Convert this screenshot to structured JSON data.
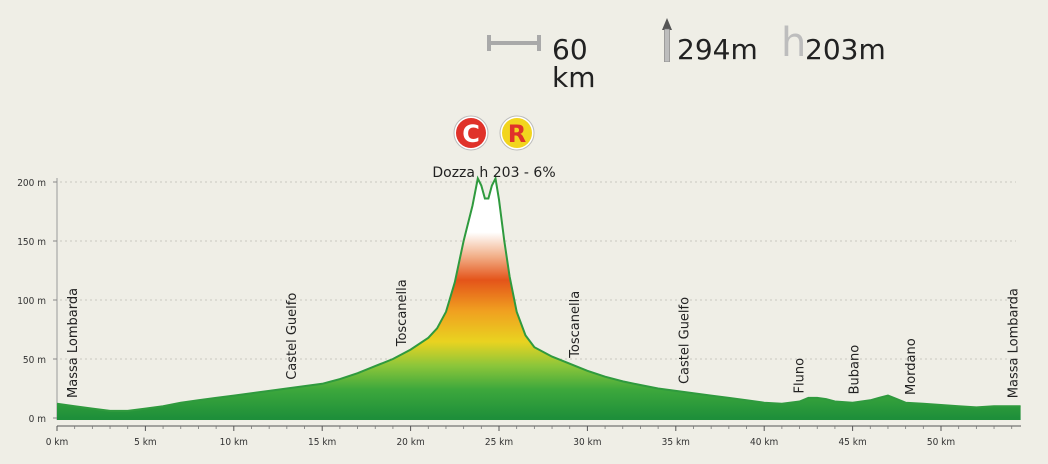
{
  "stats": {
    "distance": "60 km",
    "climb": "294m",
    "max_altitude": "203m"
  },
  "colors": {
    "background": "#efeee6",
    "profile_line": "#2f9a3e",
    "low": "#1e8f3a",
    "mid": "#e9d320",
    "high": "#e4541a",
    "peak": "#ffffff"
  },
  "climb_badges": [
    {
      "letter": "C",
      "color": "#e0322a",
      "text_color": "#ffffff"
    },
    {
      "letter": "R",
      "color": "#f2d51e",
      "text_color": "#e0322a"
    }
  ],
  "climb_label": "Dozza h 203 - 6%",
  "chart_data": {
    "type": "area",
    "xlim": [
      0,
      54.5
    ],
    "ylim": [
      0,
      200
    ],
    "y_ticks": [
      0,
      50,
      100,
      150,
      200
    ],
    "y_tick_labels": [
      "0 m",
      "50 m",
      "100 m",
      "150 m",
      "200 m"
    ],
    "x_ticks": [
      0,
      5,
      10,
      15,
      20,
      25,
      30,
      35,
      40,
      45,
      50
    ],
    "x_tick_labels": [
      "0 km",
      "5 km",
      "10 km",
      "15 km",
      "20 km",
      "25 km",
      "30 km",
      "35 km",
      "40 km",
      "45 km",
      "50 km"
    ],
    "grid": "horizontal-dotted",
    "profile": {
      "x": [
        0,
        1,
        2,
        3,
        4,
        5,
        6,
        7,
        8,
        9,
        10,
        11,
        12,
        13,
        14,
        15,
        16,
        17,
        18,
        19,
        20,
        21,
        21.5,
        22,
        22.5,
        23,
        23.5,
        23.8,
        24,
        24.2,
        24.4,
        24.6,
        24.8,
        25,
        25.3,
        25.6,
        26,
        26.5,
        27,
        28,
        29,
        30,
        31,
        32,
        33,
        34,
        35,
        36,
        37,
        38,
        39,
        40,
        41,
        42,
        42.5,
        43,
        43.5,
        44,
        45,
        46,
        46.5,
        47,
        47.5,
        48,
        49,
        50,
        51,
        52,
        53,
        54,
        54.5
      ],
      "y": [
        12,
        10,
        8,
        6,
        6,
        8,
        10,
        13,
        15,
        17,
        19,
        21,
        23,
        25,
        27,
        29,
        33,
        38,
        44,
        50,
        58,
        68,
        76,
        90,
        115,
        150,
        180,
        203,
        197,
        186,
        186,
        197,
        203,
        185,
        150,
        120,
        90,
        70,
        60,
        52,
        46,
        40,
        35,
        31,
        28,
        25,
        23,
        21,
        19,
        17,
        15,
        13,
        12,
        14,
        17,
        17,
        16,
        14,
        13,
        15,
        17,
        19,
        16,
        13,
        12,
        11,
        10,
        9,
        10,
        10,
        10
      ]
    },
    "places": [
      {
        "km": 0.9,
        "label": "Massa Lombarda"
      },
      {
        "km": 13.3,
        "label": "Castel Guelfo"
      },
      {
        "km": 19.5,
        "label": "Toscanella"
      },
      {
        "km": 29.3,
        "label": "Toscanella"
      },
      {
        "km": 35.5,
        "label": "Castel Guelfo"
      },
      {
        "km": 42.0,
        "label": "Fluno"
      },
      {
        "km": 45.1,
        "label": "Bubano"
      },
      {
        "km": 48.3,
        "label": "Mordano"
      },
      {
        "km": 54.1,
        "label": "Massa Lombarda"
      }
    ]
  }
}
